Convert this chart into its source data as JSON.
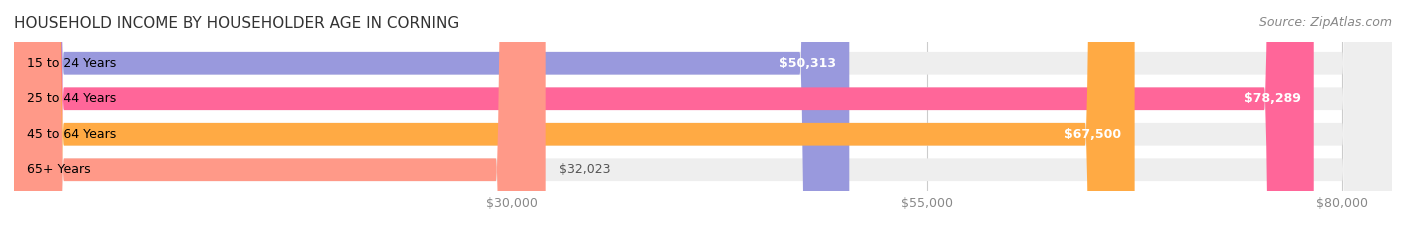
{
  "title": "HOUSEHOLD INCOME BY HOUSEHOLDER AGE IN CORNING",
  "source": "Source: ZipAtlas.com",
  "categories": [
    "15 to 24 Years",
    "25 to 44 Years",
    "45 to 64 Years",
    "65+ Years"
  ],
  "values": [
    50313,
    78289,
    67500,
    32023
  ],
  "bar_colors": [
    "#9999dd",
    "#ff6699",
    "#ffaa44",
    "#ff9988"
  ],
  "bar_bg_color": "#eeeeee",
  "label_values": [
    "$50,313",
    "$78,289",
    "$67,500",
    "$32,023"
  ],
  "x_ticks": [
    30000,
    55000,
    80000
  ],
  "x_tick_labels": [
    "$30,000",
    "$55,000",
    "$80,000"
  ],
  "xmin": 0,
  "xmax": 83000,
  "background_color": "#ffffff",
  "title_fontsize": 11,
  "source_fontsize": 9,
  "label_fontsize": 9,
  "tick_fontsize": 9,
  "cat_fontsize": 9
}
